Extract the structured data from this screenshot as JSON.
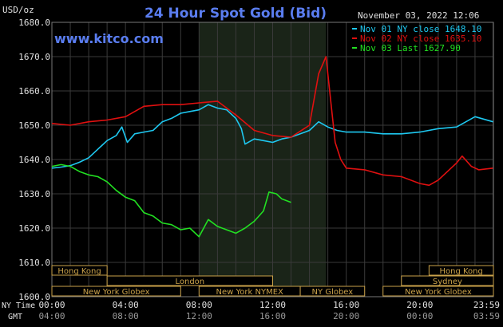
{
  "chart_data": {
    "type": "line",
    "title": "24 Hour Spot Gold (Bid)",
    "watermark": "www.kitco.com",
    "timestamp": "November 03, 2022 12:06",
    "ylabel": "USD/oz",
    "ylim": [
      1600,
      1680
    ],
    "yticks": [
      "1600.0",
      "1610.0",
      "1620.0",
      "1630.0",
      "1640.0",
      "1650.0",
      "1660.0",
      "1670.0",
      "1680.0"
    ],
    "xlim": [
      0,
      24
    ],
    "xticks_ny": [
      "00:00",
      "04:00",
      "08:00",
      "12:00",
      "16:00",
      "20:00",
      "23:59"
    ],
    "xticks_gmt": [
      "04:00",
      "08:00",
      "12:00",
      "16:00",
      "20:00",
      "00:00",
      "03:59"
    ],
    "ny_time_label": "NY Time",
    "gmt_label": "GMT",
    "shaded_period": [
      8.0,
      14.9
    ],
    "colors": {
      "nov01": "#1ec8f0",
      "nov02": "#e01010",
      "nov03": "#22e022",
      "title": "#5a7df0",
      "grid": "#3a3a3a",
      "shade": "#1a2418",
      "axis_text": "#e0e0e0",
      "session": "#caa24a"
    },
    "legend": [
      {
        "label": "Nov 01 NY close 1648.10",
        "color": "#1ec8f0"
      },
      {
        "label": "Nov 02 NY close 1635.10",
        "color": "#e01010"
      },
      {
        "label": "Nov 03 Last 1627.90",
        "color": "#22e022"
      }
    ],
    "series": [
      {
        "key": "nov01",
        "color": "#1ec8f0",
        "points": [
          [
            0,
            1637.5
          ],
          [
            0.5,
            1637.8
          ],
          [
            1,
            1638.2
          ],
          [
            1.5,
            1639.2
          ],
          [
            2,
            1640.5
          ],
          [
            2.5,
            1643
          ],
          [
            3,
            1645.5
          ],
          [
            3.5,
            1647
          ],
          [
            3.8,
            1649.5
          ],
          [
            4.1,
            1645
          ],
          [
            4.5,
            1647.5
          ],
          [
            5,
            1648
          ],
          [
            5.5,
            1648.5
          ],
          [
            6,
            1651
          ],
          [
            6.5,
            1652
          ],
          [
            7,
            1653.5
          ],
          [
            7.5,
            1654
          ],
          [
            8,
            1654.5
          ],
          [
            8.5,
            1656
          ],
          [
            9,
            1655
          ],
          [
            9.5,
            1654.5
          ],
          [
            10,
            1652
          ],
          [
            10.3,
            1649
          ],
          [
            10.5,
            1644.5
          ],
          [
            11,
            1646
          ],
          [
            11.5,
            1645.5
          ],
          [
            12,
            1645
          ],
          [
            12.5,
            1646
          ],
          [
            13,
            1646.5
          ],
          [
            13.5,
            1647.5
          ],
          [
            14,
            1648.5
          ],
          [
            14.5,
            1651
          ],
          [
            15,
            1649.5
          ],
          [
            15.5,
            1648.5
          ],
          [
            16,
            1648
          ],
          [
            17,
            1648
          ],
          [
            18,
            1647.5
          ],
          [
            19,
            1647.5
          ],
          [
            20,
            1648
          ],
          [
            21,
            1649
          ],
          [
            22,
            1649.5
          ],
          [
            23,
            1652.5
          ],
          [
            23.98,
            1651
          ]
        ]
      },
      {
        "key": "nov02",
        "color": "#e01010",
        "points": [
          [
            0,
            1650.5
          ],
          [
            1,
            1650
          ],
          [
            2,
            1651
          ],
          [
            3,
            1651.5
          ],
          [
            4,
            1652.5
          ],
          [
            5,
            1655.5
          ],
          [
            6,
            1656
          ],
          [
            7,
            1656
          ],
          [
            8,
            1656.5
          ],
          [
            9,
            1657
          ],
          [
            10,
            1653
          ],
          [
            11,
            1648.5
          ],
          [
            12,
            1647
          ],
          [
            13,
            1646.5
          ],
          [
            14,
            1650
          ],
          [
            14.5,
            1665
          ],
          [
            14.9,
            1670
          ],
          [
            15.1,
            1660
          ],
          [
            15.4,
            1645
          ],
          [
            15.7,
            1640
          ],
          [
            16,
            1637.5
          ],
          [
            17,
            1637
          ],
          [
            18,
            1635.5
          ],
          [
            19,
            1635
          ],
          [
            20,
            1633
          ],
          [
            20.5,
            1632.5
          ],
          [
            21,
            1634
          ],
          [
            22,
            1639
          ],
          [
            22.3,
            1641
          ],
          [
            22.8,
            1638
          ],
          [
            23.2,
            1637
          ],
          [
            23.98,
            1637.5
          ]
        ]
      },
      {
        "key": "nov03",
        "color": "#22e022",
        "points": [
          [
            0,
            1638
          ],
          [
            0.5,
            1638.5
          ],
          [
            1,
            1638
          ],
          [
            1.5,
            1636.5
          ],
          [
            2,
            1635.5
          ],
          [
            2.5,
            1635
          ],
          [
            3,
            1633.5
          ],
          [
            3.5,
            1631
          ],
          [
            4,
            1629
          ],
          [
            4.5,
            1628
          ],
          [
            5,
            1624.5
          ],
          [
            5.5,
            1623.5
          ],
          [
            6,
            1621.5
          ],
          [
            6.5,
            1621
          ],
          [
            7,
            1619.5
          ],
          [
            7.5,
            1620
          ],
          [
            8,
            1617.5
          ],
          [
            8.5,
            1622.5
          ],
          [
            9,
            1620.5
          ],
          [
            9.5,
            1619.5
          ],
          [
            10,
            1618.5
          ],
          [
            10.5,
            1620
          ],
          [
            11,
            1622
          ],
          [
            11.5,
            1625
          ],
          [
            11.8,
            1630.5
          ],
          [
            12.2,
            1630
          ],
          [
            12.5,
            1628.5
          ],
          [
            13,
            1627.5
          ]
        ]
      }
    ],
    "sessions": [
      {
        "label": "Hong Kong",
        "start": 0.0,
        "end": 3.0,
        "row": 0
      },
      {
        "label": "London",
        "start": 3.0,
        "end": 12.0,
        "row": 1
      },
      {
        "label": "New York Globex",
        "start": 0.0,
        "end": 7.0,
        "row": 2
      },
      {
        "label": "New York NYMEX",
        "start": 8.0,
        "end": 13.5,
        "row": 2
      },
      {
        "label": "NY Globex",
        "start": 13.5,
        "end": 17.0,
        "row": 2
      },
      {
        "label": "Hong Kong",
        "start": 20.5,
        "end": 24.0,
        "row": 0
      },
      {
        "label": "Sydney",
        "start": 19.0,
        "end": 24.0,
        "row": 1
      },
      {
        "label": "New York Globex",
        "start": 18.0,
        "end": 24.0,
        "row": 2
      }
    ]
  }
}
